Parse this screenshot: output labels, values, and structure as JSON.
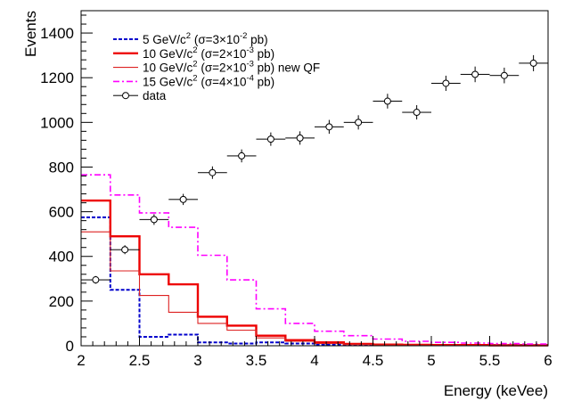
{
  "chart_data": {
    "type": "line",
    "xlabel": "Energy (keVee)",
    "ylabel": "Events",
    "xlim": [
      2,
      6
    ],
    "ylim": [
      0,
      1500
    ],
    "x_ticks": [
      "2",
      "2.5",
      "3",
      "3.5",
      "4",
      "4.5",
      "5",
      "5.5",
      "6"
    ],
    "x_tick_values": [
      2,
      2.5,
      3,
      3.5,
      4,
      4.5,
      5,
      5.5,
      6
    ],
    "y_ticks": [
      "0",
      "200",
      "400",
      "600",
      "800",
      "1000",
      "1200",
      "1400"
    ],
    "y_tick_values": [
      0,
      200,
      400,
      600,
      800,
      1000,
      1200,
      1400
    ],
    "bin_edges": [
      2.0,
      2.25,
      2.5,
      2.75,
      3.0,
      3.25,
      3.5,
      3.75,
      4.0,
      4.25,
      4.5,
      4.75,
      5.0,
      5.25,
      5.5,
      5.75,
      6.0
    ],
    "legend_position": "top-left",
    "series": [
      {
        "name": "5 GeV/c² (σ=3×10⁻² pb)",
        "legend_parts": [
          "5 GeV/c",
          "2",
          " (σ=3×10",
          "-2",
          " pb)"
        ],
        "color": "#0000cc",
        "dash": "dashed",
        "values": [
          575,
          250,
          40,
          50,
          15,
          10,
          15,
          10,
          5,
          5,
          4,
          4,
          3,
          3,
          3,
          3
        ]
      },
      {
        "name": "10 GeV/c² (σ=2×10⁻³ pb)",
        "legend_parts": [
          "10 GeV/c",
          "2",
          " (σ=2×10",
          "-3",
          " pb)"
        ],
        "color": "#ee0000",
        "dash": "solid-thick",
        "values": [
          650,
          490,
          320,
          275,
          130,
          90,
          45,
          25,
          15,
          8,
          5,
          4,
          3,
          3,
          2,
          2
        ]
      },
      {
        "name": "10 GeV/c² (σ=2×10⁻³ pb) new QF",
        "legend_parts": [
          "10 GeV/c",
          "2",
          " (σ=2×10",
          "-3",
          " pb) new QF"
        ],
        "color": "#dd2222",
        "dash": "solid-thin",
        "values": [
          510,
          335,
          225,
          150,
          100,
          70,
          35,
          20,
          10,
          6,
          4,
          3,
          2,
          2,
          2,
          2
        ]
      },
      {
        "name": "15 GeV/c² (σ=4×10⁻⁴ pb)",
        "legend_parts": [
          "15 GeV/c",
          "2",
          " (σ=4×10",
          "-4",
          " pb)"
        ],
        "color": "#ff00ff",
        "dash": "dashdot",
        "values": [
          765,
          675,
          595,
          530,
          405,
          295,
          165,
          100,
          65,
          45,
          30,
          20,
          15,
          12,
          10,
          8
        ]
      }
    ],
    "data": {
      "name": "data",
      "x": [
        2.125,
        2.375,
        2.625,
        2.875,
        3.125,
        3.375,
        3.625,
        3.875,
        4.125,
        4.375,
        4.625,
        4.875,
        5.125,
        5.375,
        5.625,
        5.875
      ],
      "y": [
        295,
        430,
        565,
        655,
        775,
        850,
        925,
        930,
        980,
        1000,
        1095,
        1045,
        1175,
        1215,
        1210,
        1265
      ],
      "yerr": [
        17,
        20,
        24,
        25,
        28,
        29,
        30,
        30,
        31,
        32,
        33,
        32,
        34,
        35,
        35,
        36
      ]
    }
  }
}
